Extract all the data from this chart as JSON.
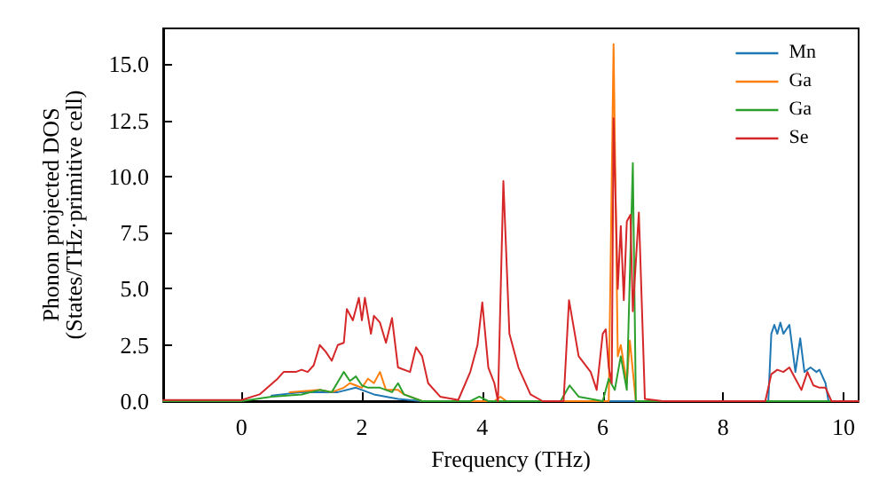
{
  "chart_data": {
    "type": "line",
    "xlabel": "Frequency (THz)",
    "ylabel": "Phonon projected DOS\n(States/THz·primitive cell)",
    "xlim": [
      -1.3,
      10.25
    ],
    "ylim": [
      0,
      16.6
    ],
    "xticks": [
      0,
      2,
      4,
      6,
      8,
      10
    ],
    "yticks": [
      {
        "value": 0,
        "label": "0.0"
      },
      {
        "value": 2.5,
        "label": "2.5"
      },
      {
        "value": 5,
        "label": "5.0"
      },
      {
        "value": 7.5,
        "label": "7.5"
      },
      {
        "value": 10,
        "label": "10.0"
      },
      {
        "value": 12.5,
        "label": "12.5"
      },
      {
        "value": 15,
        "label": "15.0"
      }
    ],
    "grid": false,
    "legend": "top right",
    "marker": "none",
    "line_style": "solid",
    "series": [
      {
        "name": "Mn",
        "color": "#1f77b4",
        "x": [
          0.5,
          1.0,
          1.3,
          1.6,
          1.9,
          2.0,
          2.2,
          2.4,
          2.6,
          2.8,
          3.0,
          8.75,
          8.8,
          8.85,
          8.9,
          8.95,
          9.0,
          9.1,
          9.2,
          9.28,
          9.35,
          9.45,
          9.55,
          9.6,
          9.7,
          9.75,
          10.25
        ],
        "values": [
          0.25,
          0.4,
          0.4,
          0.4,
          0.6,
          0.5,
          0.3,
          0.2,
          0.1,
          0.05,
          0,
          0,
          3.0,
          3.4,
          3.0,
          3.5,
          3.0,
          3.4,
          1.3,
          2.8,
          1.3,
          1.5,
          1.3,
          1.4,
          0.8,
          0,
          0
        ]
      },
      {
        "name": "Ga",
        "color": "#ff7f0e",
        "x": [
          0.8,
          1.3,
          1.5,
          1.7,
          1.8,
          1.9,
          2.0,
          2.1,
          2.2,
          2.3,
          2.4,
          2.6,
          2.7,
          3.0,
          4.2,
          4.3,
          4.4,
          6.1,
          6.18,
          6.25,
          6.3,
          6.4,
          6.45,
          6.55,
          10.25
        ],
        "values": [
          0.4,
          0.5,
          0.4,
          0.6,
          0.8,
          0.7,
          0.6,
          1.0,
          0.8,
          1.3,
          0.5,
          0.5,
          0.3,
          0,
          0,
          0.2,
          0,
          0,
          15.9,
          2.0,
          2.5,
          0.8,
          2.7,
          0,
          0
        ]
      },
      {
        "name": "Ga",
        "color": "#2ca02c",
        "x": [
          -1.3,
          0,
          0.5,
          1.0,
          1.3,
          1.5,
          1.7,
          1.8,
          1.9,
          2.0,
          2.1,
          2.3,
          2.5,
          2.6,
          2.7,
          2.9,
          3.0,
          3.8,
          3.95,
          4.1,
          5.3,
          5.45,
          5.6,
          6.0,
          6.1,
          6.2,
          6.3,
          6.4,
          6.5,
          6.55,
          10.25
        ],
        "values": [
          0,
          0,
          0.2,
          0.3,
          0.5,
          0.4,
          1.3,
          0.9,
          1.1,
          0.7,
          0.6,
          0.6,
          0.4,
          0.8,
          0.3,
          0.1,
          0,
          0,
          0.2,
          0,
          0,
          0.7,
          0.2,
          0,
          1.0,
          0.5,
          2.0,
          0.5,
          10.6,
          0,
          0
        ]
      },
      {
        "name": "Se",
        "color": "#d62728",
        "x": [
          -1.3,
          0,
          0.3,
          0.6,
          0.7,
          0.9,
          1.0,
          1.1,
          1.2,
          1.3,
          1.4,
          1.5,
          1.6,
          1.7,
          1.75,
          1.85,
          1.95,
          2.0,
          2.05,
          2.15,
          2.2,
          2.3,
          2.4,
          2.5,
          2.6,
          2.8,
          2.9,
          3.0,
          3.1,
          3.3,
          3.6,
          3.8,
          3.92,
          4.0,
          4.1,
          4.2,
          4.26,
          4.35,
          4.45,
          4.6,
          4.8,
          5.0,
          5.35,
          5.44,
          5.6,
          5.8,
          5.9,
          6.0,
          6.05,
          6.1,
          6.15,
          6.18,
          6.25,
          6.3,
          6.35,
          6.4,
          6.46,
          6.5,
          6.6,
          6.7,
          7.0,
          8.7,
          8.8,
          8.9,
          9.0,
          9.1,
          9.2,
          9.3,
          9.4,
          9.5,
          9.6,
          9.7,
          9.8,
          10.25
        ],
        "values": [
          0.05,
          0.05,
          0.3,
          1.0,
          1.3,
          1.3,
          1.4,
          1.3,
          1.6,
          2.5,
          2.2,
          1.8,
          2.5,
          2.6,
          4.1,
          3.6,
          4.6,
          3.6,
          4.6,
          3.0,
          3.8,
          3.5,
          2.6,
          3.7,
          1.5,
          1.3,
          2.4,
          2.0,
          0.8,
          0.2,
          0.05,
          1.3,
          2.5,
          4.4,
          1.5,
          0.8,
          0,
          9.8,
          3.0,
          1.5,
          0.3,
          0,
          0,
          4.5,
          2.0,
          1.3,
          0.5,
          3.0,
          3.2,
          1.5,
          0.8,
          12.6,
          5.0,
          7.8,
          4.5,
          8.0,
          8.3,
          4.0,
          8.4,
          0.1,
          0,
          0,
          1.2,
          1.4,
          1.3,
          1.5,
          1.0,
          0.5,
          1.3,
          0.7,
          0.6,
          0.6,
          0,
          0
        ]
      }
    ]
  }
}
